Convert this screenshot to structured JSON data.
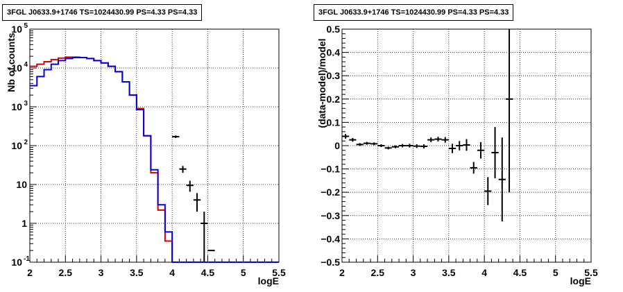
{
  "chart_data": [
    {
      "type": "line",
      "title": "3FGL J0633.9+1746 TS=1024430.99 PS=4.33 PS=4.33",
      "xlabel": "logE",
      "ylabel": "Nb of counts",
      "xlim": [
        2,
        5.5
      ],
      "ylim": [
        0.1,
        100000
      ],
      "yscale": "log",
      "grid": true,
      "x_ticks": [
        "2",
        "2.5",
        "3",
        "3.5",
        "4",
        "4.5",
        "5",
        "5.5"
      ],
      "y_ticks": [
        "10^-1",
        "1",
        "10",
        "10^2",
        "10^3",
        "10^4",
        "10^5"
      ],
      "bin_edges": [
        2.0,
        2.1,
        2.2,
        2.3,
        2.4,
        2.5,
        2.6,
        2.7,
        2.8,
        2.9,
        3.0,
        3.1,
        3.2,
        3.3,
        3.4,
        3.5,
        3.6,
        3.7,
        3.8,
        3.9,
        4.0,
        4.1,
        4.2,
        4.3,
        4.4,
        4.5,
        4.6,
        4.7,
        4.8,
        4.9,
        5.0,
        5.1,
        5.2,
        5.3,
        5.4,
        5.5
      ],
      "series": [
        {
          "color": "#d40000",
          "values": [
            11000,
            12500,
            14500,
            16500,
            18000,
            19000,
            19000,
            18500,
            17500,
            15500,
            13500,
            11000,
            8000,
            4400,
            2000,
            900,
            180,
            20,
            2.2,
            0.35,
            0.1,
            0.1,
            0.1,
            0.1,
            0.1,
            0.1,
            0.1,
            0.1,
            0.1,
            0.1,
            0.1,
            0.1,
            0.1,
            0.1,
            0.1
          ]
        },
        {
          "color": "#0000e0",
          "values": [
            3500,
            6000,
            9000,
            12500,
            15500,
            17500,
            18500,
            18500,
            17500,
            15500,
            13500,
            11000,
            8000,
            4400,
            2000,
            850,
            180,
            24,
            3,
            0.6,
            0.1,
            0.1,
            0.1,
            0.1,
            0.1,
            0.1,
            0.1,
            0.1,
            0.1,
            0.1,
            0.1,
            0.1,
            0.1,
            0.1,
            0.1
          ]
        }
      ],
      "data_points": {
        "x": [
          4.05,
          4.15,
          4.25,
          4.35,
          4.45,
          4.55
        ],
        "y": [
          170,
          25,
          9.5,
          4,
          1,
          0.2
        ],
        "yerr": [
          13,
          5,
          3,
          2,
          1,
          0
        ]
      }
    },
    {
      "type": "scatter",
      "title": "3FGL J0633.9+1746 TS=1024430.99 PS=4.33 PS=4.33",
      "xlabel": "logE",
      "ylabel": "(data-model)/model",
      "xlim": [
        2,
        5.5
      ],
      "ylim": [
        -0.5,
        0.5
      ],
      "grid": true,
      "x_ticks": [
        "2",
        "2.5",
        "3",
        "3.5",
        "4",
        "4.5",
        "5",
        "5.5"
      ],
      "y_ticks": [
        "−0.5",
        "−0.4",
        "−0.3",
        "−0.2",
        "−0.1",
        "0",
        "0.1",
        "0.2",
        "0.3",
        "0.4",
        "0.5"
      ],
      "x": [
        2.05,
        2.15,
        2.25,
        2.35,
        2.45,
        2.55,
        2.65,
        2.75,
        2.85,
        2.95,
        3.05,
        3.15,
        3.25,
        3.35,
        3.45,
        3.55,
        3.65,
        3.75,
        3.85,
        3.95,
        4.05,
        4.15,
        4.25,
        4.35
      ],
      "y": [
        0.04,
        0.025,
        0.005,
        0.01,
        0.008,
        0.0,
        -0.01,
        -0.005,
        0.0,
        0.0,
        -0.002,
        -0.003,
        0.025,
        0.028,
        0.025,
        -0.012,
        0.0,
        0.003,
        -0.095,
        -0.02,
        -0.195,
        -0.03,
        -0.145,
        0.2
      ],
      "yerr": [
        0.01,
        0.008,
        0.006,
        0.006,
        0.006,
        0.006,
        0.006,
        0.006,
        0.007,
        0.008,
        0.008,
        0.009,
        0.01,
        0.01,
        0.012,
        0.02,
        0.02,
        0.025,
        0.025,
        0.035,
        0.06,
        0.11,
        0.18,
        0.4
      ]
    }
  ]
}
